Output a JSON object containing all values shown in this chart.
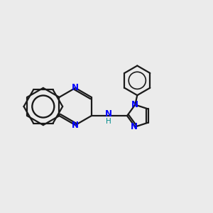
{
  "background_color": "#ebebeb",
  "bond_color": "#1a1a1a",
  "n_color": "#0000ff",
  "h_color": "#008b8b",
  "lw": 1.6,
  "dbo": 0.12,
  "figsize": [
    3.0,
    3.0
  ],
  "dpi": 100,
  "xlim": [
    0.0,
    10.0
  ],
  "ylim": [
    1.5,
    9.5
  ]
}
